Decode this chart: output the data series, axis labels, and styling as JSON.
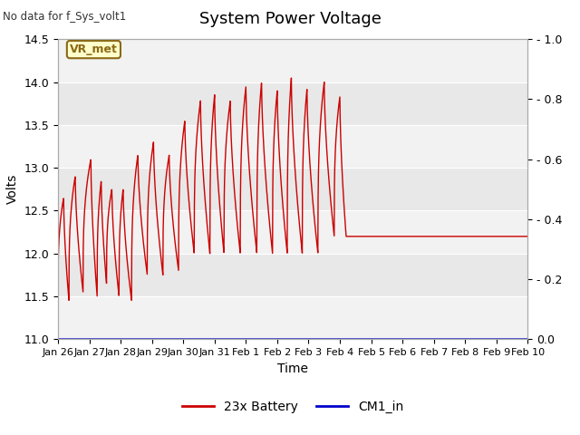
{
  "title": "System Power Voltage",
  "subtitle": "No data for f_Sys_volt1",
  "ylabel_left": "Volts",
  "xlabel": "Time",
  "ylim_left": [
    11.0,
    14.5
  ],
  "ylim_right": [
    0.0,
    1.0
  ],
  "yticks_left": [
    11.0,
    11.5,
    12.0,
    12.5,
    13.0,
    13.5,
    14.0,
    14.5
  ],
  "yticks_right": [
    0.0,
    0.2,
    0.4,
    0.6,
    0.8,
    1.0
  ],
  "xtick_labels": [
    "Jan 26",
    "Jan 27",
    "Jan 28",
    "Jan 29",
    "Jan 30",
    "Jan 31",
    "Feb 1",
    "Feb 2",
    "Feb 3",
    "Feb 4",
    "Feb 5",
    "Feb 6",
    "Feb 7",
    "Feb 8",
    "Feb 9",
    "Feb 10"
  ],
  "background_color": "#ffffff",
  "plot_bg_color": "#e8e8e8",
  "band_color": "#f2f2f2",
  "line_color_battery": "#cc0000",
  "line_color_cm1": "#0000cc",
  "vr_met_label": "VR_met",
  "vr_met_bg": "#ffffcc",
  "vr_met_border": "#8b6914",
  "legend_battery": "23x Battery",
  "legend_cm1": "CM1_in",
  "title_fontsize": 13,
  "label_fontsize": 10,
  "tick_fontsize": 9,
  "cycle_peaks_t": [
    0.18,
    0.55,
    1.05,
    1.38,
    1.72,
    2.08,
    2.55,
    3.05,
    3.55,
    4.05,
    4.55,
    5.0,
    5.5,
    6.0,
    6.5,
    7.0,
    7.45,
    7.95,
    8.5,
    9.0
  ],
  "cycle_peaks_v": [
    12.65,
    12.9,
    13.1,
    12.85,
    12.75,
    12.75,
    13.15,
    13.3,
    13.15,
    13.55,
    13.78,
    13.85,
    13.78,
    13.95,
    14.0,
    13.9,
    14.05,
    13.92,
    14.0,
    13.83
  ],
  "cycle_troughs_t": [
    0.35,
    0.8,
    1.25,
    1.55,
    1.95,
    2.35,
    2.85,
    3.35,
    3.85,
    4.35,
    4.85,
    5.3,
    5.82,
    6.35,
    6.85,
    7.32,
    7.8,
    8.3,
    8.82,
    9.2
  ],
  "cycle_troughs_v": [
    11.45,
    11.55,
    11.5,
    11.65,
    11.5,
    11.45,
    11.75,
    11.75,
    11.8,
    12.0,
    12.0,
    12.0,
    12.0,
    12.0,
    12.0,
    12.0,
    12.0,
    12.0,
    12.2,
    12.2
  ]
}
